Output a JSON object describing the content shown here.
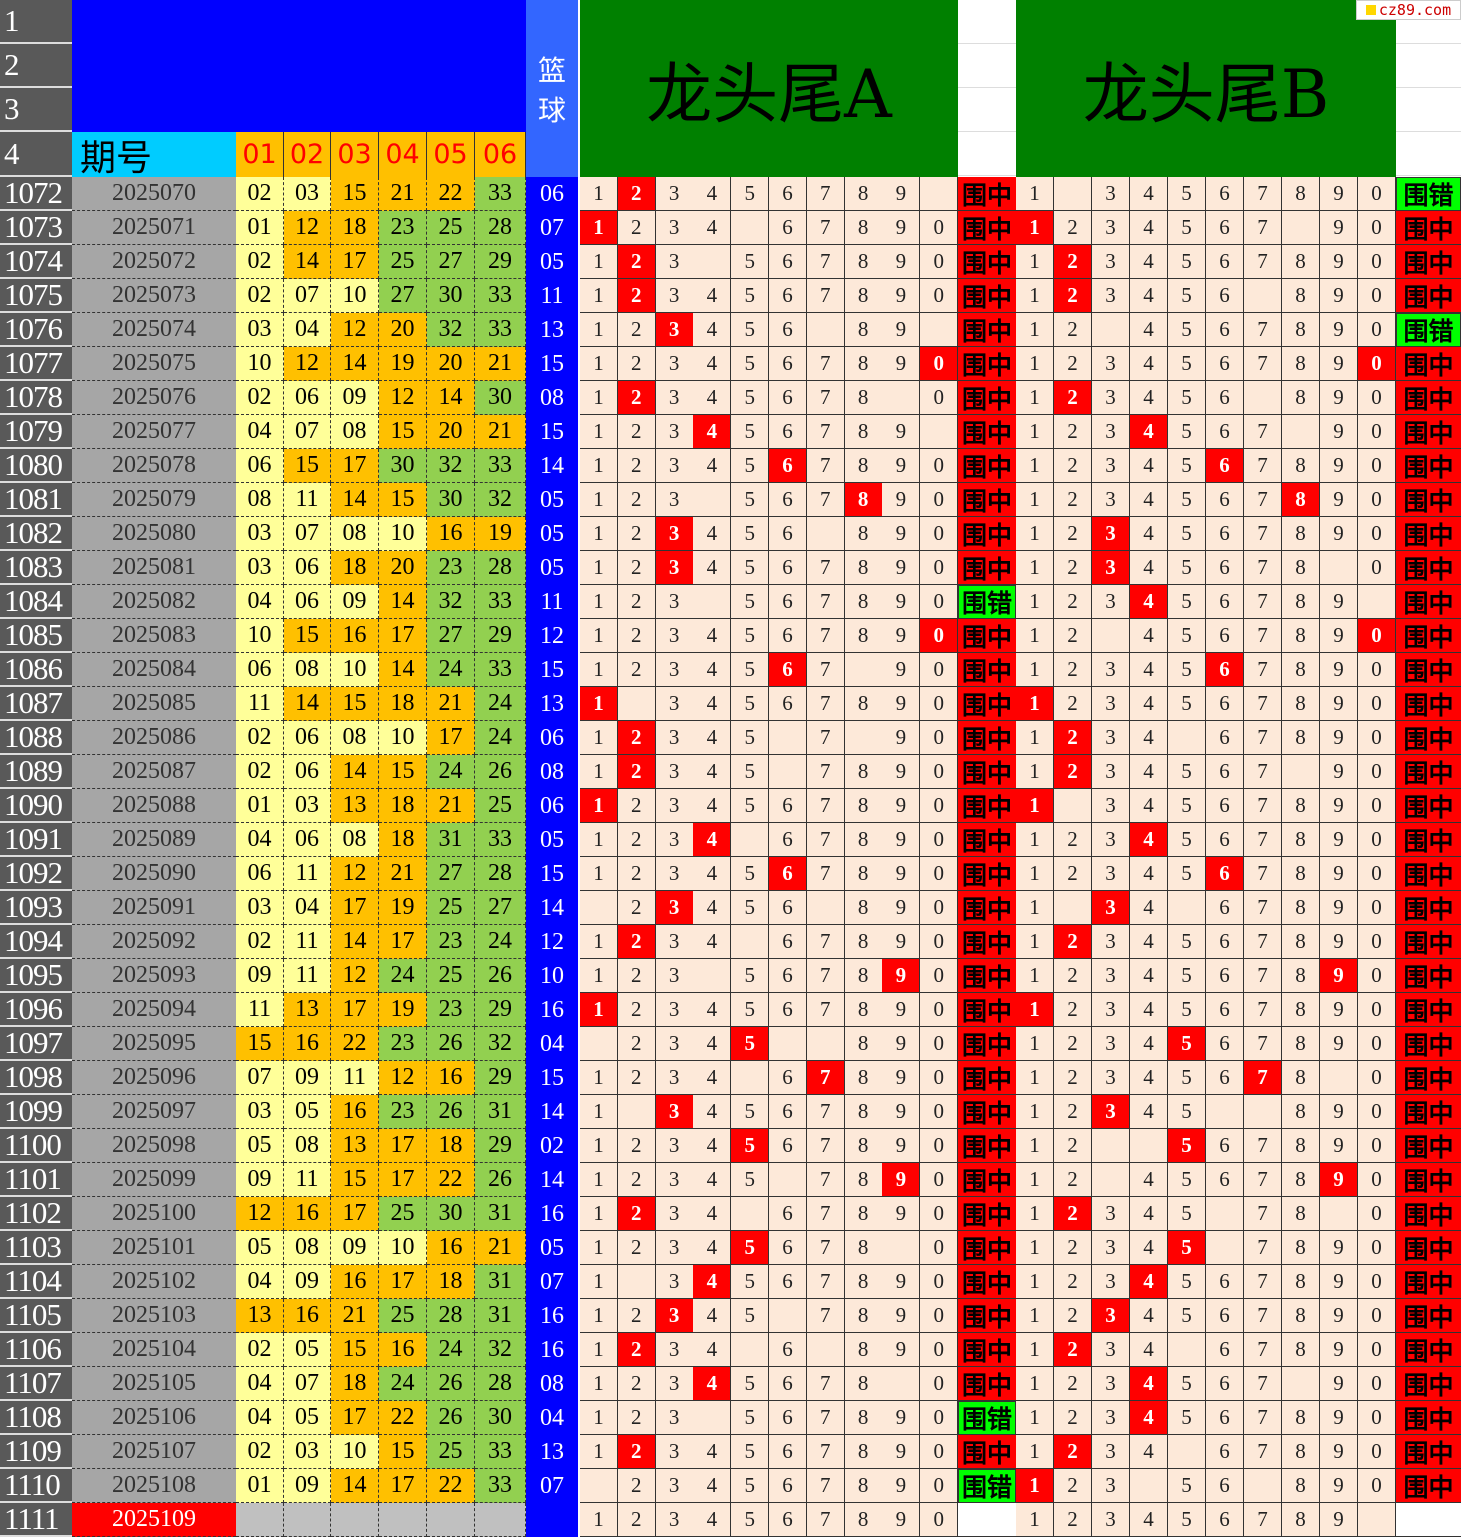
{
  "header": {
    "row_numbers": [
      "1",
      "2",
      "3",
      "4"
    ],
    "period_label": "期号",
    "number_columns": [
      "01",
      "02",
      "03",
      "04",
      "05",
      "06"
    ],
    "basketball_label": [
      "篮",
      "球"
    ],
    "panel_a_title": "龙头尾A",
    "panel_b_title": "龙头尾B",
    "logo": "cz89.com"
  },
  "colors": {
    "low": "#ffff99",
    "mid": "#ffc000",
    "high": "#92d050",
    "blue_ball": "#0000ff",
    "hit": "#ff0000",
    "miss": "#00ff00",
    "header_blue": "#0000ff",
    "header_cyan": "#00ccff",
    "header_green": "#008000"
  },
  "rows": [
    {
      "row": "1072",
      "period": "2025070",
      "nums": [
        "02",
        "03",
        "15",
        "21",
        "22",
        "33"
      ],
      "blue": "06",
      "a": "123456789.",
      "a_hit": "2",
      "a_result": "围中",
      "b": "1.34567890",
      "b_hit": "",
      "b_result": "围错"
    },
    {
      "row": "1073",
      "period": "2025071",
      "nums": [
        "01",
        "12",
        "18",
        "23",
        "25",
        "28"
      ],
      "blue": "07",
      "a": "1234.67890",
      "a_hit": "1",
      "a_result": "围中",
      "b": "1234567.90",
      "b_hit": "1",
      "b_result": "围中"
    },
    {
      "row": "1074",
      "period": "2025072",
      "nums": [
        "02",
        "14",
        "17",
        "25",
        "27",
        "29"
      ],
      "blue": "05",
      "a": "123.567890",
      "a_hit": "2",
      "a_result": "围中",
      "b": "1234567890",
      "b_hit": "2",
      "b_result": "围中"
    },
    {
      "row": "1075",
      "period": "2025073",
      "nums": [
        "02",
        "07",
        "10",
        "27",
        "30",
        "33"
      ],
      "blue": "11",
      "a": "1234567890",
      "a_hit": "2",
      "a_result": "围中",
      "b": "123456.890",
      "b_hit": "2",
      "b_result": "围中"
    },
    {
      "row": "1076",
      "period": "2025074",
      "nums": [
        "03",
        "04",
        "12",
        "20",
        "32",
        "33"
      ],
      "blue": "13",
      "a": "123456.89.",
      "a_hit": "3",
      "a_result": "围中",
      "b": "12.4567890",
      "b_hit": "",
      "b_result": "围错"
    },
    {
      "row": "1077",
      "period": "2025075",
      "nums": [
        "10",
        "12",
        "14",
        "19",
        "20",
        "21"
      ],
      "blue": "15",
      "a": "1234567890",
      "a_hit": "0",
      "a_result": "围中",
      "b": "1234567890",
      "b_hit": "0",
      "b_result": "围中"
    },
    {
      "row": "1078",
      "period": "2025076",
      "nums": [
        "02",
        "06",
        "09",
        "12",
        "14",
        "30"
      ],
      "blue": "08",
      "a": "12345678.0",
      "a_hit": "2",
      "a_result": "围中",
      "b": "123456.890",
      "b_hit": "2",
      "b_result": "围中"
    },
    {
      "row": "1079",
      "period": "2025077",
      "nums": [
        "04",
        "07",
        "08",
        "15",
        "20",
        "21"
      ],
      "blue": "15",
      "a": "123456789.",
      "a_hit": "4",
      "a_result": "围中",
      "b": "1234567.90",
      "b_hit": "4",
      "b_result": "围中"
    },
    {
      "row": "1080",
      "period": "2025078",
      "nums": [
        "06",
        "15",
        "17",
        "30",
        "32",
        "33"
      ],
      "blue": "14",
      "a": "1234567890",
      "a_hit": "6",
      "a_result": "围中",
      "b": "1234567890",
      "b_hit": "6",
      "b_result": "围中"
    },
    {
      "row": "1081",
      "period": "2025079",
      "nums": [
        "08",
        "11",
        "14",
        "15",
        "30",
        "32"
      ],
      "blue": "05",
      "a": "123.567890",
      "a_hit": "8",
      "a_result": "围中",
      "b": "1234567890",
      "b_hit": "8",
      "b_result": "围中"
    },
    {
      "row": "1082",
      "period": "2025080",
      "nums": [
        "03",
        "07",
        "08",
        "10",
        "16",
        "19"
      ],
      "blue": "05",
      "a": "123456.890",
      "a_hit": "3",
      "a_result": "围中",
      "b": "1234567890",
      "b_hit": "3",
      "b_result": "围中"
    },
    {
      "row": "1083",
      "period": "2025081",
      "nums": [
        "03",
        "06",
        "18",
        "20",
        "23",
        "28"
      ],
      "blue": "05",
      "a": "1234567890",
      "a_hit": "3",
      "a_result": "围中",
      "b": "12345678.0",
      "b_hit": "3",
      "b_result": "围中"
    },
    {
      "row": "1084",
      "period": "2025082",
      "nums": [
        "04",
        "06",
        "09",
        "14",
        "32",
        "33"
      ],
      "blue": "11",
      "a": "123.567890",
      "a_hit": "",
      "a_result": "围错",
      "b": "123456789.",
      "b_hit": "4",
      "b_result": "围中"
    },
    {
      "row": "1085",
      "period": "2025083",
      "nums": [
        "10",
        "15",
        "16",
        "17",
        "27",
        "29"
      ],
      "blue": "12",
      "a": "1234567890",
      "a_hit": "0",
      "a_result": "围中",
      "b": "12.4567890",
      "b_hit": "0",
      "b_result": "围中"
    },
    {
      "row": "1086",
      "period": "2025084",
      "nums": [
        "06",
        "08",
        "10",
        "14",
        "24",
        "33"
      ],
      "blue": "15",
      "a": "1234567.90",
      "a_hit": "6",
      "a_result": "围中",
      "b": "1234567890",
      "b_hit": "6",
      "b_result": "围中"
    },
    {
      "row": "1087",
      "period": "2025085",
      "nums": [
        "11",
        "14",
        "15",
        "18",
        "21",
        "24"
      ],
      "blue": "13",
      "a": "1.34567890",
      "a_hit": "1",
      "a_result": "围中",
      "b": "1234567890",
      "b_hit": "1",
      "b_result": "围中"
    },
    {
      "row": "1088",
      "period": "2025086",
      "nums": [
        "02",
        "06",
        "08",
        "10",
        "17",
        "24"
      ],
      "blue": "06",
      "a": "12345.7.90",
      "a_hit": "2",
      "a_result": "围中",
      "b": "1234.67890",
      "b_hit": "2",
      "b_result": "围中"
    },
    {
      "row": "1089",
      "period": "2025087",
      "nums": [
        "02",
        "06",
        "14",
        "15",
        "24",
        "26"
      ],
      "blue": "08",
      "a": "12345.7890",
      "a_hit": "2",
      "a_result": "围中",
      "b": "1234567.90",
      "b_hit": "2",
      "b_result": "围中"
    },
    {
      "row": "1090",
      "period": "2025088",
      "nums": [
        "01",
        "03",
        "13",
        "18",
        "21",
        "25"
      ],
      "blue": "06",
      "a": "1234567890",
      "a_hit": "1",
      "a_result": "围中",
      "b": "1.34567890",
      "b_hit": "1",
      "b_result": "围中"
    },
    {
      "row": "1091",
      "period": "2025089",
      "nums": [
        "04",
        "06",
        "08",
        "18",
        "31",
        "33"
      ],
      "blue": "05",
      "a": "1234.67890",
      "a_hit": "4",
      "a_result": "围中",
      "b": "1234567890",
      "b_hit": "4",
      "b_result": "围中"
    },
    {
      "row": "1092",
      "period": "2025090",
      "nums": [
        "06",
        "11",
        "12",
        "21",
        "27",
        "28"
      ],
      "blue": "15",
      "a": "1234567890",
      "a_hit": "6",
      "a_result": "围中",
      "b": "1234567890",
      "b_hit": "6",
      "b_result": "围中"
    },
    {
      "row": "1093",
      "period": "2025091",
      "nums": [
        "03",
        "04",
        "17",
        "19",
        "25",
        "27"
      ],
      "blue": "14",
      "a": ".23456.890",
      "a_hit": "3",
      "a_result": "围中",
      "b": "1.34.67890",
      "b_hit": "3",
      "b_result": "围中"
    },
    {
      "row": "1094",
      "period": "2025092",
      "nums": [
        "02",
        "11",
        "14",
        "17",
        "23",
        "24"
      ],
      "blue": "12",
      "a": "1234.67890",
      "a_hit": "2",
      "a_result": "围中",
      "b": "1234567890",
      "b_hit": "2",
      "b_result": "围中"
    },
    {
      "row": "1095",
      "period": "2025093",
      "nums": [
        "09",
        "11",
        "12",
        "24",
        "25",
        "26"
      ],
      "blue": "10",
      "a": "123.567890",
      "a_hit": "9",
      "a_result": "围中",
      "b": "1234567890",
      "b_hit": "9",
      "b_result": "围中"
    },
    {
      "row": "1096",
      "period": "2025094",
      "nums": [
        "11",
        "13",
        "17",
        "19",
        "23",
        "29"
      ],
      "blue": "16",
      "a": "1234567890",
      "a_hit": "1",
      "a_result": "围中",
      "b": "1234567890",
      "b_hit": "1",
      "b_result": "围中"
    },
    {
      "row": "1097",
      "period": "2025095",
      "nums": [
        "15",
        "16",
        "22",
        "23",
        "26",
        "32"
      ],
      "blue": "04",
      "a": ".2345..890",
      "a_hit": "5",
      "a_result": "围中",
      "b": "1234567890",
      "b_hit": "5",
      "b_result": "围中"
    },
    {
      "row": "1098",
      "period": "2025096",
      "nums": [
        "07",
        "09",
        "11",
        "12",
        "16",
        "29"
      ],
      "blue": "15",
      "a": "1234.67890",
      "a_hit": "7",
      "a_result": "围中",
      "b": "12345678.0",
      "b_hit": "7",
      "b_result": "围中"
    },
    {
      "row": "1099",
      "period": "2025097",
      "nums": [
        "03",
        "05",
        "16",
        "23",
        "26",
        "31"
      ],
      "blue": "14",
      "a": "1.34567890",
      "a_hit": "3",
      "a_result": "围中",
      "b": "12345..890",
      "b_hit": "3",
      "b_result": "围中"
    },
    {
      "row": "1100",
      "period": "2025098",
      "nums": [
        "05",
        "08",
        "13",
        "17",
        "18",
        "29"
      ],
      "blue": "02",
      "a": "1234567890",
      "a_hit": "5",
      "a_result": "围中",
      "b": "12..567890",
      "b_hit": "5",
      "b_result": "围中"
    },
    {
      "row": "1101",
      "period": "2025099",
      "nums": [
        "09",
        "11",
        "15",
        "17",
        "22",
        "26"
      ],
      "blue": "14",
      "a": "12345.7890",
      "a_hit": "9",
      "a_result": "围中",
      "b": "12.4567890",
      "b_hit": "9",
      "b_result": "围中"
    },
    {
      "row": "1102",
      "period": "2025100",
      "nums": [
        "12",
        "16",
        "17",
        "25",
        "30",
        "31"
      ],
      "blue": "16",
      "a": "1234.67890",
      "a_hit": "2",
      "a_result": "围中",
      "b": "12345.78.0",
      "b_hit": "2",
      "b_result": "围中"
    },
    {
      "row": "1103",
      "period": "2025101",
      "nums": [
        "05",
        "08",
        "09",
        "10",
        "16",
        "21"
      ],
      "blue": "05",
      "a": "12345678.0",
      "a_hit": "5",
      "a_result": "围中",
      "b": "12345.7890",
      "b_hit": "5",
      "b_result": "围中"
    },
    {
      "row": "1104",
      "period": "2025102",
      "nums": [
        "04",
        "09",
        "16",
        "17",
        "18",
        "31"
      ],
      "blue": "07",
      "a": "1.34567890",
      "a_hit": "4",
      "a_result": "围中",
      "b": "1234567890",
      "b_hit": "4",
      "b_result": "围中"
    },
    {
      "row": "1105",
      "period": "2025103",
      "nums": [
        "13",
        "16",
        "21",
        "25",
        "28",
        "31"
      ],
      "blue": "16",
      "a": "12345.7890",
      "a_hit": "3",
      "a_result": "围中",
      "b": "1234567890",
      "b_hit": "3",
      "b_result": "围中"
    },
    {
      "row": "1106",
      "period": "2025104",
      "nums": [
        "02",
        "05",
        "15",
        "16",
        "24",
        "32"
      ],
      "blue": "16",
      "a": "1234.6.890",
      "a_hit": "2",
      "a_result": "围中",
      "b": "1234.67890",
      "b_hit": "2",
      "b_result": "围中"
    },
    {
      "row": "1107",
      "period": "2025105",
      "nums": [
        "04",
        "07",
        "18",
        "24",
        "26",
        "28"
      ],
      "blue": "08",
      "a": "12345678.0",
      "a_hit": "4",
      "a_result": "围中",
      "b": "1234567.90",
      "b_hit": "4",
      "b_result": "围中"
    },
    {
      "row": "1108",
      "period": "2025106",
      "nums": [
        "04",
        "05",
        "17",
        "22",
        "26",
        "30"
      ],
      "blue": "04",
      "a": "123.567890",
      "a_hit": "",
      "a_result": "围错",
      "b": "1234567890",
      "b_hit": "4",
      "b_result": "围中"
    },
    {
      "row": "1109",
      "period": "2025107",
      "nums": [
        "02",
        "03",
        "10",
        "15",
        "25",
        "33"
      ],
      "blue": "13",
      "a": "1234567890",
      "a_hit": "2",
      "a_result": "围中",
      "b": "1234.67890",
      "b_hit": "2",
      "b_result": "围中"
    },
    {
      "row": "1110",
      "period": "2025108",
      "nums": [
        "01",
        "09",
        "14",
        "17",
        "22",
        "33"
      ],
      "blue": "07",
      "a": ".234567890",
      "a_hit": "",
      "a_result": "围错",
      "b": "123.56.890",
      "b_hit": "1",
      "b_result": "围中"
    },
    {
      "row": "1111",
      "period": "2025109",
      "nums": [
        "",
        "",
        "",
        "",
        "",
        ""
      ],
      "blue": "",
      "a": "1234567890",
      "a_hit": "",
      "a_result": "",
      "b": "123456789.",
      "b_hit": "",
      "b_result": ""
    }
  ]
}
